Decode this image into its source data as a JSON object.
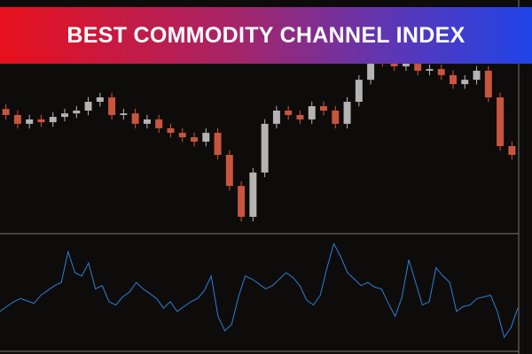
{
  "chart_data": [
    {
      "type": "candlestick",
      "title": "BEST COMMODITY CHANNEL INDEX",
      "ylim": [
        1.2,
        1.3
      ],
      "up_color": "#b4b4b4",
      "down_color": "#c9553e",
      "open": [
        1.253,
        1.2504,
        1.2466,
        1.2485,
        1.2473,
        1.2496,
        1.2511,
        1.2523,
        1.2561,
        1.258,
        1.2504,
        1.2511,
        1.2466,
        1.2485,
        1.2447,
        1.2427,
        1.2408,
        1.2389,
        1.2427,
        1.2332,
        1.2198,
        1.2065,
        1.2256,
        1.2466,
        1.2523,
        1.2504,
        1.2485,
        1.2542,
        1.2523,
        1.2466,
        1.2561,
        1.2656,
        1.2771,
        1.2733,
        1.2714,
        1.2725,
        1.2695,
        1.2702,
        1.2676,
        1.2637,
        1.2656,
        1.2695,
        1.258,
        1.237
      ],
      "high": [
        1.255,
        1.2524,
        1.2505,
        1.2505,
        1.2516,
        1.2531,
        1.2543,
        1.2581,
        1.26,
        1.26,
        1.2531,
        1.2531,
        1.2505,
        1.2505,
        1.2467,
        1.2447,
        1.2428,
        1.2447,
        1.2447,
        1.2352,
        1.2218,
        1.2276,
        1.2486,
        1.2543,
        1.2543,
        1.2524,
        1.2562,
        1.2562,
        1.2543,
        1.2581,
        1.2676,
        1.2791,
        1.2791,
        1.2753,
        1.2745,
        1.2745,
        1.2722,
        1.2722,
        1.2696,
        1.2676,
        1.2715,
        1.2715,
        1.26,
        1.239
      ],
      "low": [
        1.2484,
        1.2446,
        1.2446,
        1.2453,
        1.2453,
        1.2476,
        1.2491,
        1.2503,
        1.2541,
        1.2484,
        1.2484,
        1.2446,
        1.2446,
        1.2427,
        1.2407,
        1.2388,
        1.2369,
        1.2369,
        1.2312,
        1.2178,
        1.2045,
        1.2045,
        1.2236,
        1.2446,
        1.2484,
        1.2465,
        1.2465,
        1.2503,
        1.2446,
        1.2446,
        1.2541,
        1.2636,
        1.2713,
        1.2694,
        1.2694,
        1.2675,
        1.2675,
        1.2656,
        1.2617,
        1.2617,
        1.2636,
        1.256,
        1.235,
        1.2312
      ],
      "close": [
        1.2504,
        1.2466,
        1.2485,
        1.2473,
        1.2496,
        1.2511,
        1.2523,
        1.2561,
        1.258,
        1.2504,
        1.2511,
        1.2466,
        1.2485,
        1.2447,
        1.2427,
        1.2408,
        1.2389,
        1.2427,
        1.2332,
        1.2198,
        1.2065,
        1.2256,
        1.2466,
        1.2523,
        1.2504,
        1.2485,
        1.2542,
        1.2523,
        1.2466,
        1.2561,
        1.2656,
        1.2771,
        1.2733,
        1.2714,
        1.2725,
        1.2695,
        1.2702,
        1.2676,
        1.2637,
        1.2656,
        1.2695,
        1.258,
        1.237,
        1.2332
      ]
    },
    {
      "type": "line",
      "ylim": [
        -340,
        340
      ],
      "color": "#2f7fd6",
      "values": [
        -120,
        -90,
        -60,
        -40,
        -55,
        -70,
        -20,
        10,
        40,
        60,
        250,
        120,
        100,
        180,
        20,
        40,
        -60,
        -80,
        -30,
        0,
        60,
        20,
        -10,
        -40,
        -100,
        -60,
        -120,
        -90,
        -60,
        -40,
        10,
        100,
        -150,
        -240,
        -200,
        -30,
        100,
        80,
        50,
        20,
        40,
        80,
        120,
        90,
        40,
        -50,
        -80,
        -20,
        150,
        300,
        220,
        120,
        80,
        40,
        60,
        30,
        20,
        -70,
        -150,
        -30,
        200,
        60,
        -80,
        -60,
        150,
        100,
        60,
        -120,
        -90,
        -80,
        -40,
        -30,
        -20,
        -120,
        -280,
        -220,
        -100
      ]
    }
  ]
}
